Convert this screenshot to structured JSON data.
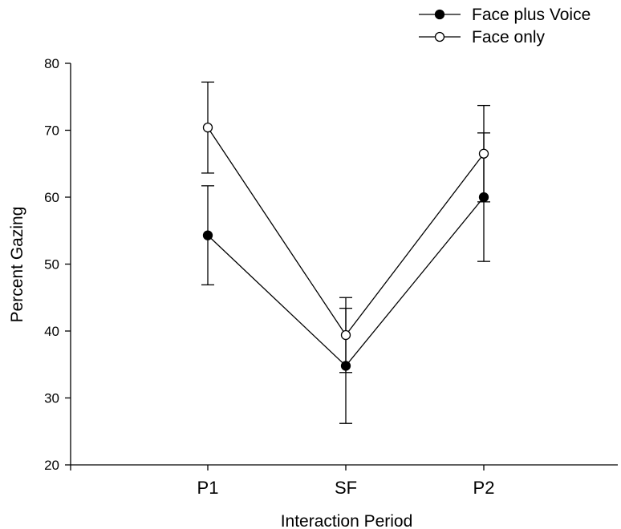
{
  "chart_data": {
    "type": "line",
    "title": "",
    "xlabel": "Interaction Period",
    "ylabel": "Percent Gazing",
    "categories": [
      "P1",
      "SF",
      "P2"
    ],
    "ylim": [
      20,
      80
    ],
    "yticks": [
      20,
      30,
      40,
      50,
      60,
      70,
      80
    ],
    "grid": false,
    "legend_position": "top-right",
    "series": [
      {
        "name": "Face plus Voice",
        "marker": "filled-circle",
        "values": [
          54.3,
          34.8,
          60.0
        ],
        "error": [
          7.4,
          8.6,
          9.6
        ]
      },
      {
        "name": "Face only",
        "marker": "open-circle",
        "values": [
          70.4,
          39.4,
          66.5
        ],
        "error": [
          6.8,
          5.6,
          7.2
        ]
      }
    ]
  }
}
